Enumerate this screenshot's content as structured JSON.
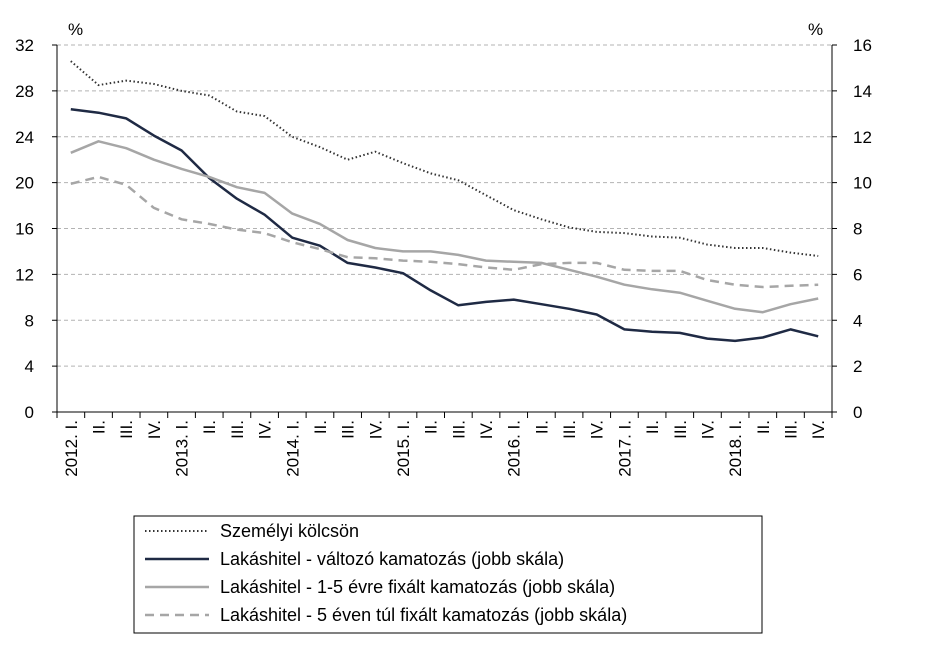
{
  "chart_data": {
    "type": "line",
    "left_axis_unit": "%",
    "right_axis_unit": "%",
    "ylim_left": [
      0,
      32
    ],
    "yticks_left": [
      0,
      4,
      8,
      12,
      16,
      20,
      24,
      28,
      32
    ],
    "ylim_right": [
      0,
      16
    ],
    "yticks_right": [
      0,
      2,
      4,
      6,
      8,
      10,
      12,
      14,
      16
    ],
    "grid": true,
    "categories": [
      "2012. I.",
      "II.",
      "III.",
      "IV.",
      "2013. I.",
      "II.",
      "III.",
      "IV.",
      "2014. I.",
      "II.",
      "III.",
      "IV.",
      "2015. I.",
      "II.",
      "III.",
      "IV.",
      "2016. I.",
      "II.",
      "III.",
      "IV.",
      "2017. I.",
      "II.",
      "III.",
      "IV.",
      "2018. I.",
      "II.",
      "III.",
      "IV."
    ],
    "series": [
      {
        "name": "Személyi kölcsön",
        "axis": "left",
        "style": "dotted",
        "color": "#333333",
        "values": [
          30.6,
          28.5,
          28.9,
          28.6,
          28.0,
          27.6,
          26.2,
          25.8,
          24.0,
          23.1,
          22.0,
          22.7,
          21.7,
          20.8,
          20.2,
          18.9,
          17.6,
          16.8,
          16.1,
          15.7,
          15.6,
          15.3,
          15.2,
          14.6,
          14.3,
          14.3,
          13.9,
          13.6
        ]
      },
      {
        "name": "Lakáshitel - változó kamatozás (jobb skála)",
        "axis": "right",
        "style": "solid",
        "color": "#1f2a44",
        "values": [
          13.2,
          13.05,
          12.8,
          12.05,
          11.4,
          10.2,
          9.3,
          8.6,
          7.6,
          7.25,
          6.5,
          6.3,
          6.05,
          5.3,
          4.65,
          4.8,
          4.9,
          4.7,
          4.5,
          4.25,
          3.6,
          3.5,
          3.45,
          3.2,
          3.1,
          3.25,
          3.6,
          3.3
        ]
      },
      {
        "name": "Lakáshitel - 1-5 évre fixált kamatozás (jobb skála)",
        "axis": "right",
        "style": "solid",
        "color": "#a6a6a6",
        "values": [
          11.3,
          11.8,
          11.5,
          11.0,
          10.6,
          10.25,
          9.8,
          9.55,
          8.65,
          8.2,
          7.5,
          7.15,
          7.0,
          7.0,
          6.85,
          6.6,
          6.55,
          6.5,
          6.2,
          5.9,
          5.55,
          5.35,
          5.2,
          4.85,
          4.5,
          4.35,
          4.7,
          4.95
        ]
      },
      {
        "name": "Lakáshitel - 5 éven túl fixált kamatozás (jobb skála)",
        "axis": "right",
        "style": "dashed",
        "color": "#a6a6a6",
        "values": [
          9.95,
          10.25,
          9.9,
          8.9,
          8.4,
          8.2,
          7.95,
          7.8,
          7.4,
          7.1,
          6.75,
          6.7,
          6.6,
          6.55,
          6.45,
          6.3,
          6.2,
          6.45,
          6.5,
          6.5,
          6.2,
          6.15,
          6.15,
          5.75,
          5.55,
          5.45,
          5.5,
          5.55
        ]
      }
    ]
  }
}
